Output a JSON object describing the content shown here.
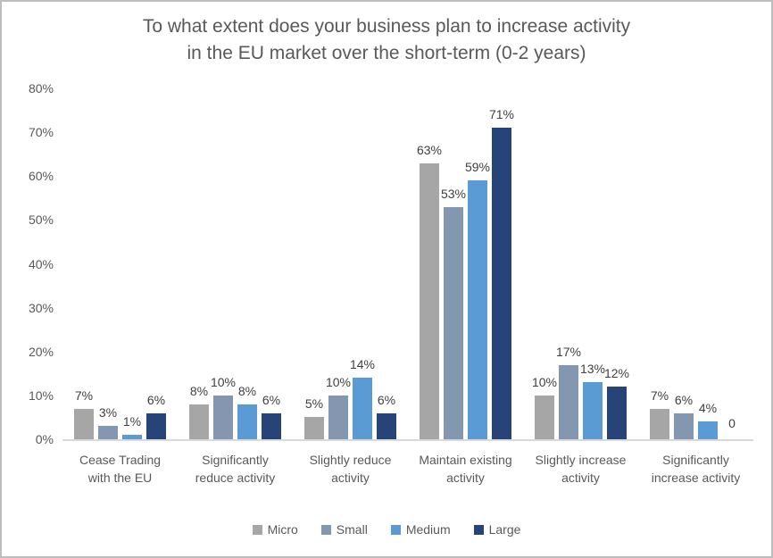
{
  "window": {
    "background_color": "#FFFFFF",
    "border_color": "#BDBDBD"
  },
  "chart_data": {
    "type": "bar",
    "title": "To what extent does your business plan to increase activity in the EU market over the short-term (0-2 years)",
    "title_lines": [
      "To what extent does your business plan to increase activity",
      "in the EU market over the short-term (0-2 years)"
    ],
    "categories": [
      "Cease Trading with the EU",
      "Significantly reduce activity",
      "Slightly reduce activity",
      "Maintain existing activity",
      "Slightly increase activity",
      "Significantly increase activity"
    ],
    "category_lines": [
      [
        "Cease Trading",
        "with the EU"
      ],
      [
        "Significantly",
        "reduce activity"
      ],
      [
        "Slightly reduce",
        "activity"
      ],
      [
        "Maintain existing",
        "activity"
      ],
      [
        "Slightly increase",
        "activity"
      ],
      [
        "Significantly",
        "increase activity"
      ]
    ],
    "series": [
      {
        "name": "Micro",
        "color": "#A6A6A6",
        "values": [
          7,
          8,
          5,
          63,
          10,
          7
        ],
        "labels": [
          "7%",
          "8%",
          "5%",
          "63%",
          "10%",
          "7%"
        ]
      },
      {
        "name": "Small",
        "color": "#8497B0",
        "values": [
          3,
          10,
          10,
          53,
          17,
          6
        ],
        "labels": [
          "3%",
          "10%",
          "10%",
          "53%",
          "17%",
          "6%"
        ]
      },
      {
        "name": "Medium",
        "color": "#5B9BD5",
        "values": [
          1,
          8,
          14,
          59,
          13,
          4
        ],
        "labels": [
          "1%",
          "8%",
          "14%",
          "59%",
          "13%",
          "4%"
        ]
      },
      {
        "name": "Large",
        "color": "#264478",
        "values": [
          6,
          6,
          6,
          71,
          12,
          0
        ],
        "labels": [
          "6%",
          "6%",
          "6%",
          "71%",
          "12%",
          "0"
        ]
      }
    ],
    "y_axis": {
      "min": 0,
      "max": 80,
      "tick_step": 10,
      "ticks": [
        "0%",
        "10%",
        "20%",
        "30%",
        "40%",
        "50%",
        "60%",
        "70%",
        "80%"
      ]
    },
    "legend": {
      "position": "bottom",
      "entries": [
        "Micro",
        "Small",
        "Medium",
        "Large"
      ]
    },
    "grid": false,
    "axis_line_color": "#D9D9D9",
    "text_colors": {
      "title": "#595959",
      "axis": "#595959",
      "data_label": "#404040"
    }
  }
}
